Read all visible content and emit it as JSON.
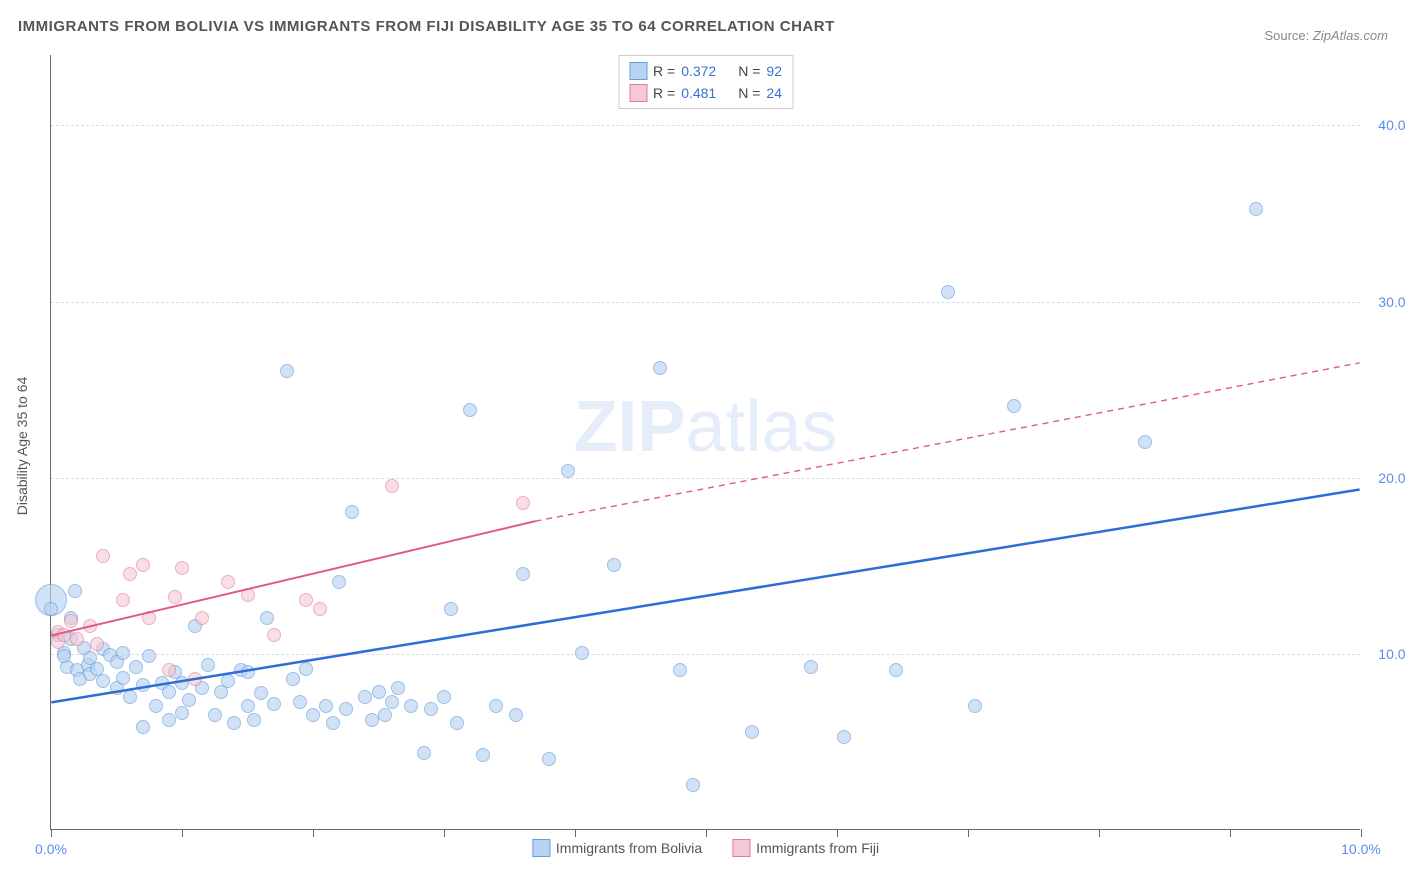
{
  "title": "IMMIGRANTS FROM BOLIVIA VS IMMIGRANTS FROM FIJI DISABILITY AGE 35 TO 64 CORRELATION CHART",
  "source_prefix": "Source: ",
  "source_name": "ZipAtlas.com",
  "y_axis_label": "Disability Age 35 to 64",
  "watermark_bold": "ZIP",
  "watermark_light": "atlas",
  "chart": {
    "type": "scatter",
    "xlim": [
      0,
      10
    ],
    "ylim": [
      0,
      44
    ],
    "x_ticks": [
      0,
      1,
      2,
      3,
      4,
      5,
      6,
      7,
      8,
      9,
      10
    ],
    "x_tick_labels": {
      "0": "0.0%",
      "10": "10.0%"
    },
    "y_ticks": [
      10,
      20,
      30,
      40
    ],
    "y_tick_labels": {
      "10": "10.0%",
      "20": "20.0%",
      "30": "30.0%",
      "40": "40.0%"
    },
    "background_color": "#ffffff",
    "grid_color": "#dddddd",
    "axis_color": "#666666",
    "axis_label_color": "#5b8def",
    "marker_size": 14,
    "marker_border_width": 1.5,
    "series": [
      {
        "name": "Immigrants from Bolivia",
        "fill_color": "#b9d4f3",
        "stroke_color": "#6a9ed6",
        "fill_opacity": 0.65,
        "R_label": "R =",
        "R_value": "0.372",
        "N_label": "N =",
        "N_value": "92",
        "trend": {
          "solid_from": [
            0,
            7.2
          ],
          "solid_to": [
            10,
            19.3
          ],
          "color": "#2e6cd6",
          "line_width": 2.5,
          "dash_after_x": null
        },
        "points": [
          [
            0.05,
            11.0
          ],
          [
            0.1,
            10.0
          ],
          [
            0.12,
            9.2
          ],
          [
            0.1,
            9.8
          ],
          [
            0.15,
            10.8
          ],
          [
            0.15,
            12.0
          ],
          [
            0.18,
            13.5
          ],
          [
            0.2,
            9.0
          ],
          [
            0.22,
            8.5
          ],
          [
            0.25,
            10.3
          ],
          [
            0.28,
            9.3
          ],
          [
            0.3,
            9.7
          ],
          [
            0.3,
            8.8
          ],
          [
            0.35,
            9.1
          ],
          [
            0.4,
            10.2
          ],
          [
            0.4,
            8.4
          ],
          [
            0.45,
            9.9
          ],
          [
            0.5,
            9.5
          ],
          [
            0.5,
            8.0
          ],
          [
            0.55,
            10.0
          ],
          [
            0.55,
            8.6
          ],
          [
            0.6,
            7.5
          ],
          [
            0.65,
            9.2
          ],
          [
            0.7,
            5.8
          ],
          [
            0.7,
            8.2
          ],
          [
            0.75,
            9.8
          ],
          [
            0.8,
            7.0
          ],
          [
            0.85,
            8.3
          ],
          [
            0.9,
            7.8
          ],
          [
            0.9,
            6.2
          ],
          [
            0.95,
            8.9
          ],
          [
            1.0,
            8.3
          ],
          [
            1.0,
            6.6
          ],
          [
            1.05,
            7.3
          ],
          [
            1.1,
            11.5
          ],
          [
            1.15,
            8.0
          ],
          [
            1.2,
            9.3
          ],
          [
            1.25,
            6.5
          ],
          [
            1.3,
            7.8
          ],
          [
            1.35,
            8.4
          ],
          [
            1.4,
            6.0
          ],
          [
            1.45,
            9.0
          ],
          [
            1.5,
            7.0
          ],
          [
            1.5,
            8.9
          ],
          [
            1.55,
            6.2
          ],
          [
            1.6,
            7.7
          ],
          [
            1.65,
            12.0
          ],
          [
            1.7,
            7.1
          ],
          [
            1.8,
            26.0
          ],
          [
            1.85,
            8.5
          ],
          [
            1.9,
            7.2
          ],
          [
            1.95,
            9.1
          ],
          [
            2.0,
            6.5
          ],
          [
            2.1,
            7.0
          ],
          [
            2.15,
            6.0
          ],
          [
            2.2,
            14.0
          ],
          [
            2.25,
            6.8
          ],
          [
            2.3,
            18.0
          ],
          [
            2.4,
            7.5
          ],
          [
            2.45,
            6.2
          ],
          [
            2.5,
            7.8
          ],
          [
            2.55,
            6.5
          ],
          [
            2.6,
            7.2
          ],
          [
            2.65,
            8.0
          ],
          [
            2.75,
            7.0
          ],
          [
            2.85,
            4.3
          ],
          [
            2.9,
            6.8
          ],
          [
            3.0,
            7.5
          ],
          [
            3.05,
            12.5
          ],
          [
            3.1,
            6.0
          ],
          [
            3.2,
            23.8
          ],
          [
            3.3,
            4.2
          ],
          [
            3.4,
            7.0
          ],
          [
            3.55,
            6.5
          ],
          [
            3.6,
            14.5
          ],
          [
            3.8,
            4.0
          ],
          [
            3.95,
            20.3
          ],
          [
            4.05,
            10.0
          ],
          [
            4.3,
            15.0
          ],
          [
            4.65,
            26.2
          ],
          [
            4.8,
            9.0
          ],
          [
            4.9,
            2.5
          ],
          [
            5.35,
            5.5
          ],
          [
            5.8,
            9.2
          ],
          [
            6.05,
            5.2
          ],
          [
            6.45,
            9.0
          ],
          [
            6.85,
            30.5
          ],
          [
            7.05,
            7.0
          ],
          [
            7.35,
            24.0
          ],
          [
            8.35,
            22.0
          ],
          [
            9.2,
            35.2
          ],
          [
            0.0,
            12.5
          ]
        ],
        "special_points": [
          {
            "x": 0.0,
            "y": 13.0,
            "size": 32
          }
        ]
      },
      {
        "name": "Immigrants from Fiji",
        "fill_color": "#f5c9d4",
        "stroke_color": "#e27a9a",
        "fill_opacity": 0.6,
        "R_label": "R =",
        "R_value": "0.481",
        "N_label": "N =",
        "N_value": "24",
        "trend": {
          "solid_from": [
            0,
            11.0
          ],
          "solid_to": [
            3.7,
            17.5
          ],
          "dash_to": [
            10,
            26.5
          ],
          "color": "#e05a82",
          "line_width": 2,
          "dash_pattern": "6 5"
        },
        "points": [
          [
            0.05,
            11.2
          ],
          [
            0.05,
            10.6
          ],
          [
            0.1,
            11.0
          ],
          [
            0.15,
            11.8
          ],
          [
            0.2,
            10.8
          ],
          [
            0.3,
            11.5
          ],
          [
            0.35,
            10.5
          ],
          [
            0.4,
            15.5
          ],
          [
            0.55,
            13.0
          ],
          [
            0.6,
            14.5
          ],
          [
            0.7,
            15.0
          ],
          [
            0.75,
            12.0
          ],
          [
            0.9,
            9.0
          ],
          [
            0.95,
            13.2
          ],
          [
            1.0,
            14.8
          ],
          [
            1.1,
            8.5
          ],
          [
            1.15,
            12.0
          ],
          [
            1.35,
            14.0
          ],
          [
            1.5,
            13.3
          ],
          [
            1.7,
            11.0
          ],
          [
            1.95,
            13.0
          ],
          [
            2.05,
            12.5
          ],
          [
            2.6,
            19.5
          ],
          [
            3.6,
            18.5
          ]
        ]
      }
    ]
  }
}
